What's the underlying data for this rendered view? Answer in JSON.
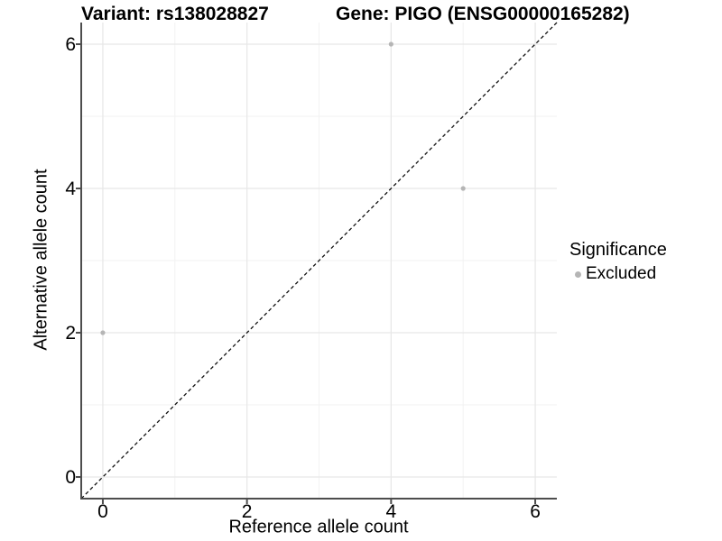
{
  "titles": {
    "left": "Variant: rs138028827",
    "right": "Gene: PIGO (ENSG00000165282)"
  },
  "legend": {
    "title": "Significance",
    "items": [
      {
        "label": "Excluded",
        "marker": "circle-icon",
        "color": "#b5b5b5"
      }
    ]
  },
  "chart_data": {
    "type": "scatter",
    "title": "Variant: rs138028827   Gene: PIGO (ENSG00000165282)",
    "xlabel": "Reference allele count",
    "ylabel": "Alternative allele count",
    "xlim": [
      -0.3,
      6.3
    ],
    "ylim": [
      -0.3,
      6.3
    ],
    "x_major_ticks": [
      0,
      2,
      4,
      6
    ],
    "y_major_ticks": [
      0,
      2,
      4,
      6
    ],
    "x_minor_ticks": [
      1,
      3,
      5
    ],
    "y_minor_ticks": [
      1,
      3,
      5
    ],
    "grid": true,
    "legend_position": "right",
    "series": [
      {
        "name": "Excluded",
        "color": "#b5b5b5",
        "marker_radius": 2.6,
        "points": [
          [
            0,
            2
          ],
          [
            4,
            6
          ],
          [
            5,
            4
          ]
        ]
      }
    ],
    "reference_line": {
      "type": "identity",
      "from": [
        -0.3,
        -0.3
      ],
      "to": [
        6.3,
        6.3
      ],
      "style": "dashed",
      "color": "#111111"
    },
    "colors": {
      "background": "#ffffff",
      "grid_major": "#e8e8e8",
      "grid_minor": "#f2f2f2",
      "axis_line": "#4d4d4d",
      "tick_text": "#000000"
    }
  }
}
